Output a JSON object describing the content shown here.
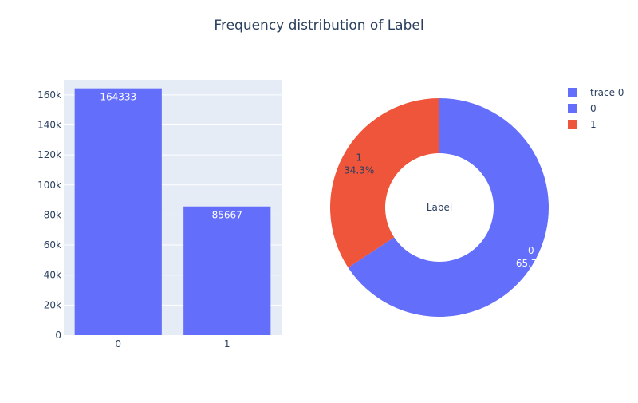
{
  "title": "Frequency distribution of Label",
  "colors": {
    "bar": "#636efa",
    "slice_0": "#636efa",
    "slice_1": "#ef553b",
    "plot_bg": "#e5ecf6",
    "text": "#2a3f5f"
  },
  "legend": {
    "placement": "top-right",
    "items": [
      {
        "label": "trace 0",
        "color": "#636efa"
      },
      {
        "label": "0",
        "color": "#636efa"
      },
      {
        "label": "1",
        "color": "#ef553b"
      }
    ]
  },
  "chart_data": [
    {
      "type": "bar",
      "categories": [
        "0",
        "1"
      ],
      "values": [
        164333,
        85667
      ],
      "data_labels": [
        "164333",
        "85667"
      ],
      "ylim": [
        0,
        170000
      ],
      "yticks": [
        0,
        20000,
        40000,
        60000,
        80000,
        100000,
        120000,
        140000,
        160000
      ],
      "ytick_labels": [
        "0",
        "20k",
        "40k",
        "60k",
        "80k",
        "100k",
        "120k",
        "140k",
        "160k"
      ],
      "grid": true
    },
    {
      "type": "pie",
      "hole": true,
      "center_label": "Label",
      "slices": [
        {
          "label": "0",
          "value": 164333,
          "percent": "65.7%"
        },
        {
          "label": "1",
          "value": 85667,
          "percent": "34.3%"
        }
      ]
    }
  ]
}
